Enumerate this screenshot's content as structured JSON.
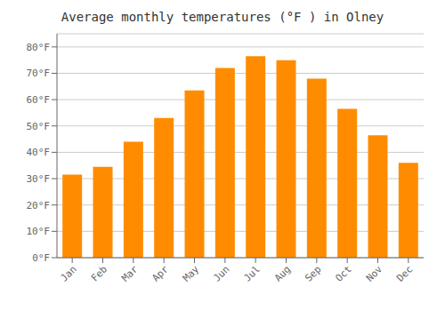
{
  "chart_data": {
    "type": "bar",
    "title": "Average monthly temperatures (°F ) in Olney",
    "categories": [
      "Jan",
      "Feb",
      "Mar",
      "Apr",
      "May",
      "Jun",
      "Jul",
      "Aug",
      "Sep",
      "Oct",
      "Nov",
      "Dec"
    ],
    "values": [
      31.5,
      34.5,
      44.0,
      53.0,
      63.5,
      72.0,
      76.5,
      75.0,
      68.0,
      56.5,
      46.5,
      36.0
    ],
    "color": "#FF8C00",
    "ylim": [
      0,
      85
    ],
    "yticks": [
      {
        "value": 0,
        "label": "0°F"
      },
      {
        "value": 10,
        "label": "10°F"
      },
      {
        "value": 20,
        "label": "20°F"
      },
      {
        "value": 30,
        "label": "30°F"
      },
      {
        "value": 40,
        "label": "40°F"
      },
      {
        "value": 50,
        "label": "50°F"
      },
      {
        "value": 60,
        "label": "60°F"
      },
      {
        "value": 70,
        "label": "70°F"
      },
      {
        "value": 80,
        "label": "80°F"
      }
    ],
    "grid": true
  }
}
